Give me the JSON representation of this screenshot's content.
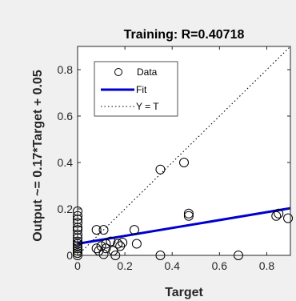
{
  "chart_data": {
    "type": "scatter",
    "title": "Training: R=0.40718",
    "xlabel": "Target",
    "ylabel": "Output ~= 0.17*Target + 0.05",
    "xlim": [
      0,
      0.9
    ],
    "ylim": [
      0,
      0.9
    ],
    "xticks": [
      0,
      0.2,
      0.4,
      0.6,
      0.8
    ],
    "xtick_labels": [
      "0",
      "0.2",
      "0.4",
      "0.6",
      "0.8"
    ],
    "yticks": [
      0,
      0.2,
      0.4,
      0.6,
      0.8
    ],
    "ytick_labels": [
      "0",
      "0.2",
      "0.4",
      "0.6",
      "0.8"
    ],
    "grid": false,
    "legend_position": "top-left",
    "colors": {
      "data": "#000000",
      "fit": "#0000cc",
      "identity": "#000000",
      "background": "#ffffff",
      "figure": "#f0f0f0"
    },
    "series": [
      {
        "name": "Data",
        "marker": "circle-open",
        "points": [
          [
            0,
            0.19
          ],
          [
            0,
            0.17
          ],
          [
            0,
            0.155
          ],
          [
            0,
            0.14
          ],
          [
            0,
            0.12
          ],
          [
            0,
            0.11
          ],
          [
            0,
            0.09
          ],
          [
            0,
            0.075
          ],
          [
            0,
            0.06
          ],
          [
            0,
            0.05
          ],
          [
            0,
            0.04
          ],
          [
            0,
            0.03
          ],
          [
            0,
            0.02
          ],
          [
            0,
            0.01
          ],
          [
            0,
            0.0
          ],
          [
            0.08,
            0.11
          ],
          [
            0.11,
            0.11
          ],
          [
            0.08,
            0.03
          ],
          [
            0.09,
            0.02
          ],
          [
            0.1,
            0.04
          ],
          [
            0.12,
            0.03
          ],
          [
            0.12,
            0.05
          ],
          [
            0.14,
            0.06
          ],
          [
            0.15,
            0.02
          ],
          [
            0.17,
            0.05
          ],
          [
            0.18,
            0.04
          ],
          [
            0.19,
            0.055
          ],
          [
            0.11,
            0.005
          ],
          [
            0.16,
            0.0
          ],
          [
            0.24,
            0.11
          ],
          [
            0.25,
            0.05
          ],
          [
            0.35,
            0.37
          ],
          [
            0.35,
            0.0
          ],
          [
            0.45,
            0.4
          ],
          [
            0.47,
            0.17
          ],
          [
            0.47,
            0.18
          ],
          [
            0.68,
            0.0
          ],
          [
            0.84,
            0.17
          ],
          [
            0.85,
            0.18
          ],
          [
            0.89,
            0.16
          ]
        ]
      },
      {
        "name": "Fit",
        "type": "line",
        "slope": 0.17,
        "intercept": 0.05
      },
      {
        "name": "Y = T",
        "type": "line",
        "style": "dotted",
        "slope": 1,
        "intercept": 0
      }
    ]
  }
}
